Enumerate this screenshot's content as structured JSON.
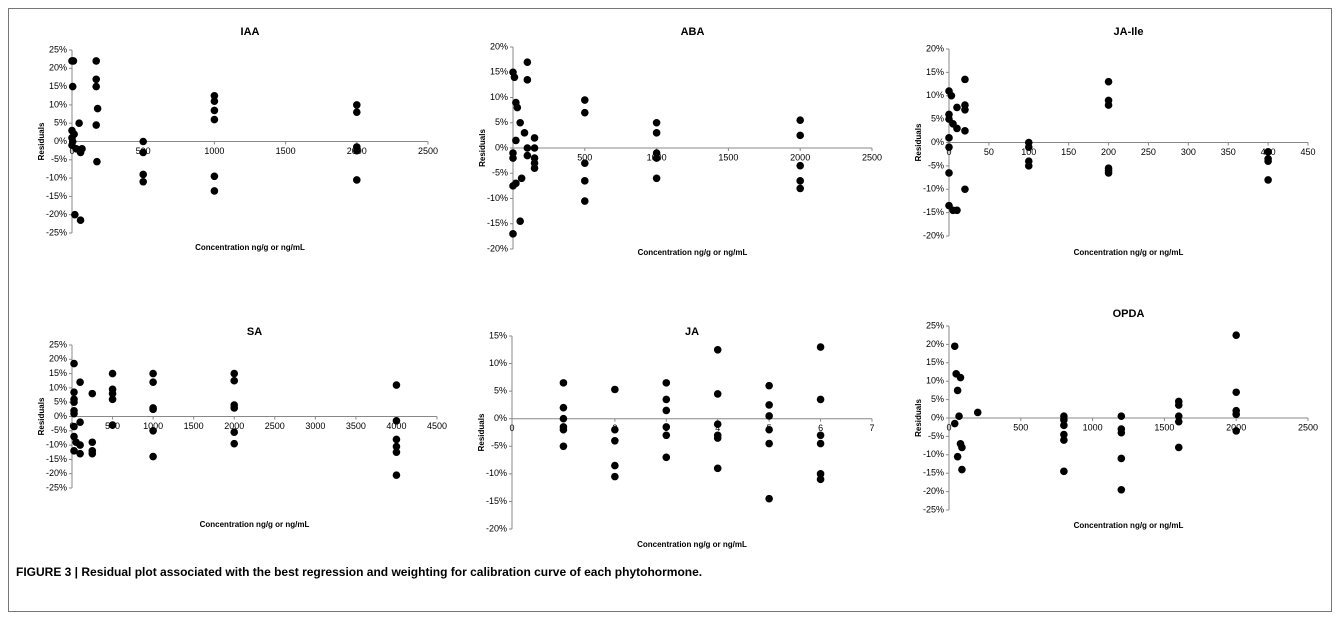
{
  "caption": "FIGURE 3 | Residual plot associated with the best regression and weighting for calibration curve of each phytohormone.",
  "chart_data": [
    {
      "type": "scatter",
      "title": "IAA",
      "ylabel": "Residuals",
      "xlabel": "Concentration ng/g or ng/mL",
      "color": "#000000",
      "xlim": [
        0,
        2500
      ],
      "xticks": [
        0,
        500,
        1000,
        1500,
        2000,
        2500
      ],
      "ylim": [
        -25,
        25
      ],
      "yticks": [
        {
          "value": 25,
          "label": "25%"
        },
        {
          "value": 20,
          "label": "20%"
        },
        {
          "value": 15,
          "label": "15%"
        },
        {
          "value": 10,
          "label": "10%"
        },
        {
          "value": 5,
          "label": "5%"
        },
        {
          "value": 0,
          "label": "0%"
        },
        {
          "value": -5,
          "label": "-5%"
        },
        {
          "value": -10,
          "label": "-10%"
        },
        {
          "value": -15,
          "label": "-15%"
        },
        {
          "value": -20,
          "label": "-20%"
        },
        {
          "value": -25,
          "label": "-25%"
        }
      ],
      "x": [
        0,
        10,
        5,
        0,
        0,
        5,
        0,
        15,
        30,
        50,
        60,
        70,
        20,
        60,
        170,
        170,
        170,
        180,
        170,
        175,
        500,
        500,
        500,
        500,
        1000,
        1000,
        1000,
        1000,
        1000,
        1000,
        2000,
        2000,
        2000,
        2000,
        2000
      ],
      "values": [
        22,
        22,
        15,
        3,
        1,
        0,
        -1,
        2,
        -2,
        5,
        -3,
        -2,
        -20,
        -21.5,
        22,
        17,
        15,
        9,
        4.5,
        -5.5,
        0,
        -3,
        -9,
        -11,
        12.5,
        11,
        8.5,
        6,
        -9.5,
        -13.5,
        10,
        8,
        -1.5,
        -2.5,
        -10.5
      ]
    },
    {
      "type": "scatter",
      "title": "ABA",
      "ylabel": "Residuals",
      "xlabel": "Concentration ng/g or ng/mL",
      "color": "#000000",
      "xlim": [
        0,
        2500
      ],
      "xticks": [
        0,
        500,
        1000,
        1500,
        2000,
        2500
      ],
      "ylim": [
        -20,
        20
      ],
      "yticks": [
        {
          "value": 20,
          "label": "20%"
        },
        {
          "value": 15,
          "label": "15%"
        },
        {
          "value": 10,
          "label": "10%"
        },
        {
          "value": 5,
          "label": "5%"
        },
        {
          "value": 0,
          "label": "0%"
        },
        {
          "value": -5,
          "label": "-5%"
        },
        {
          "value": -10,
          "label": "-10%"
        },
        {
          "value": -15,
          "label": "-15%"
        },
        {
          "value": -20,
          "label": "-20%"
        }
      ],
      "x": [
        0,
        10,
        20,
        30,
        50,
        20,
        0,
        0,
        0,
        20,
        50,
        0,
        100,
        100,
        80,
        100,
        100,
        60,
        150,
        150,
        150,
        150,
        150,
        500,
        500,
        500,
        500,
        500,
        1000,
        1000,
        1000,
        1000,
        1000,
        2000,
        2000,
        2000,
        2000,
        2000
      ],
      "values": [
        15,
        14,
        9,
        8,
        5,
        1.5,
        -1,
        -2,
        -7.5,
        -7,
        -14.5,
        -17,
        17,
        13.5,
        3,
        0,
        -1.5,
        -6,
        2,
        0,
        -2,
        -4,
        -3,
        9.5,
        7,
        -3,
        -6.5,
        -10.5,
        5,
        3,
        -1,
        -2,
        -6,
        5.5,
        2.5,
        -3.5,
        -6.5,
        -8
      ]
    },
    {
      "type": "scatter",
      "title": "JA-Ile",
      "ylabel": "Residuals",
      "xlabel": "Concentration ng/g or ng/mL",
      "color": "#000000",
      "xlim": [
        0,
        450
      ],
      "xticks": [
        0,
        50,
        100,
        150,
        200,
        250,
        300,
        350,
        400,
        450
      ],
      "ylim": [
        -20,
        20
      ],
      "yticks": [
        {
          "value": 20,
          "label": "20%"
        },
        {
          "value": 15,
          "label": "15%"
        },
        {
          "value": 10,
          "label": "10%"
        },
        {
          "value": 5,
          "label": "5%"
        },
        {
          "value": 0,
          "label": "0%"
        },
        {
          "value": -5,
          "label": "-5%"
        },
        {
          "value": -10,
          "label": "-10%"
        },
        {
          "value": -15,
          "label": "-15%"
        },
        {
          "value": -20,
          "label": "-20%"
        }
      ],
      "x": [
        0,
        3,
        0,
        0,
        5,
        0,
        0,
        0,
        0,
        5,
        10,
        10,
        10,
        20,
        20,
        20,
        20,
        20,
        100,
        100,
        100,
        100,
        200,
        200,
        200,
        200,
        200,
        200,
        400,
        400,
        400,
        400
      ],
      "values": [
        11,
        10,
        6,
        5,
        4,
        1,
        -1,
        -6.5,
        -13.5,
        -14.5,
        -14.5,
        7.5,
        3,
        13.5,
        8,
        7,
        2.5,
        -10,
        0,
        -1,
        -4,
        -5,
        13,
        9,
        8,
        -6,
        -6.5,
        -5.5,
        -2,
        -3.5,
        -4,
        -8
      ]
    },
    {
      "type": "scatter",
      "title": "SA",
      "ylabel": "Residuals",
      "xlabel": "Concentration ng/g or ng/mL",
      "color": "#000000",
      "xlim": [
        0,
        4500
      ],
      "xticks": [
        0,
        500,
        1000,
        1500,
        2000,
        2500,
        3000,
        3500,
        4000,
        4500
      ],
      "ylim": [
        -25,
        25
      ],
      "yticks": [
        {
          "value": 25,
          "label": "25%"
        },
        {
          "value": 20,
          "label": "20%"
        },
        {
          "value": 15,
          "label": "15%"
        },
        {
          "value": 10,
          "label": "10%"
        },
        {
          "value": 5,
          "label": "5%"
        },
        {
          "value": 0,
          "label": "0%"
        },
        {
          "value": -5,
          "label": "-5%"
        },
        {
          "value": -10,
          "label": "-10%"
        },
        {
          "value": -15,
          "label": "-15%"
        },
        {
          "value": -20,
          "label": "-20%"
        },
        {
          "value": -25,
          "label": "-25%"
        }
      ],
      "x": [
        25,
        25,
        25,
        25,
        25,
        25,
        25,
        25,
        25,
        50,
        100,
        100,
        100,
        100,
        250,
        250,
        250,
        250,
        500,
        500,
        500,
        500,
        500,
        1000,
        1000,
        1000,
        1000,
        1000,
        1000,
        2000,
        2000,
        2000,
        2000,
        2000,
        2000,
        4000,
        4000,
        4000,
        4000,
        4000,
        4000
      ],
      "values": [
        18.5,
        8.5,
        6,
        5,
        2,
        1,
        -3.5,
        -7,
        -12,
        -9,
        12,
        -2,
        -10,
        -13,
        8,
        -9,
        -12,
        -13,
        15,
        9.5,
        8,
        6,
        -3,
        15,
        12,
        3,
        2.5,
        -5,
        -14,
        15,
        12.5,
        4,
        3,
        -5.5,
        -9.5,
        11,
        -1.5,
        -8,
        -10.5,
        -12.5,
        -20.5
      ]
    },
    {
      "type": "scatter",
      "title": "JA",
      "ylabel": "Residuals",
      "xlabel": "Concentration ng/g or ng/mL",
      "color": "#000000",
      "xlim": [
        0,
        7
      ],
      "xticks": [
        0,
        1,
        2,
        3,
        4,
        5,
        6,
        7
      ],
      "ylim": [
        -20,
        15
      ],
      "yticks": [
        {
          "value": 15,
          "label": "15%"
        },
        {
          "value": 10,
          "label": "10%"
        },
        {
          "value": 5,
          "label": "5%"
        },
        {
          "value": 0,
          "label": "0%"
        },
        {
          "value": -5,
          "label": "-5%"
        },
        {
          "value": -10,
          "label": "-10%"
        },
        {
          "value": -15,
          "label": "-15%"
        },
        {
          "value": -20,
          "label": "-20%"
        }
      ],
      "x": [
        1,
        1,
        1,
        1,
        1,
        1,
        2,
        2,
        2,
        2,
        2,
        3,
        3,
        3,
        3,
        3,
        3,
        4,
        4,
        4,
        4,
        4,
        4,
        5,
        5,
        5,
        5,
        5,
        5,
        6,
        6,
        6,
        6,
        6,
        6
      ],
      "values": [
        6.5,
        2,
        0,
        -1.5,
        -2,
        -5,
        5.3,
        -2,
        -4,
        -8.5,
        -10.5,
        6.5,
        3.5,
        1.5,
        -1.5,
        -3,
        -7,
        12.5,
        4.5,
        -1,
        -3,
        -3.5,
        -9,
        6,
        2.5,
        0.5,
        -2,
        -4.5,
        -14.5,
        13,
        3.5,
        -3,
        -4.5,
        -10,
        -11
      ]
    },
    {
      "type": "scatter",
      "title": "OPDA",
      "ylabel": "Residuals",
      "xlabel": "Concentration ng/g or ng/mL",
      "color": "#000000",
      "xlim": [
        0,
        2500
      ],
      "xticks": [
        0,
        500,
        1000,
        1500,
        2000,
        2500
      ],
      "ylim": [
        -25,
        25
      ],
      "yticks": [
        {
          "value": 25,
          "label": "25%"
        },
        {
          "value": 20,
          "label": "20%"
        },
        {
          "value": 15,
          "label": "15%"
        },
        {
          "value": 10,
          "label": "10%"
        },
        {
          "value": 5,
          "label": "5%"
        },
        {
          "value": 0,
          "label": "0%"
        },
        {
          "value": -5,
          "label": "-5%"
        },
        {
          "value": -10,
          "label": "-10%"
        },
        {
          "value": -15,
          "label": "-15%"
        },
        {
          "value": -20,
          "label": "-20%"
        },
        {
          "value": -25,
          "label": "-25%"
        }
      ],
      "x": [
        40,
        40,
        50,
        60,
        80,
        70,
        60,
        80,
        90,
        90,
        200,
        800,
        800,
        800,
        800,
        800,
        800,
        1200,
        1200,
        1200,
        1200,
        1200,
        1600,
        1600,
        1600,
        1600,
        1600,
        2000,
        2000,
        2000,
        2000,
        2000
      ],
      "values": [
        19.5,
        -1.5,
        12,
        7.5,
        11,
        0.5,
        -10.5,
        -7,
        -8,
        -14,
        1.5,
        0.5,
        -0.5,
        -2,
        -4.5,
        -6,
        -14.5,
        0.5,
        -3,
        -4,
        -11,
        -19.5,
        4.5,
        3.5,
        0.5,
        -1,
        -8,
        22.5,
        7,
        2,
        1,
        -3.5
      ]
    }
  ]
}
